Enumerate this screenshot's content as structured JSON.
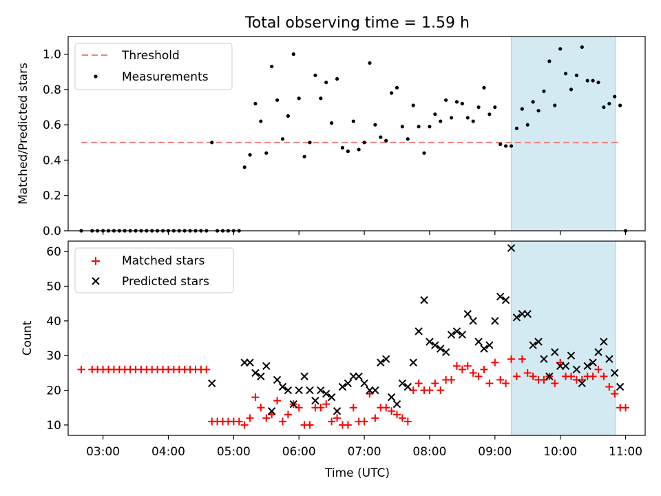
{
  "chart_data": [
    {
      "type": "scatter",
      "title": "Total observing time = 1.59 h",
      "xlabel": "",
      "ylabel": "Matched/Predicted stars",
      "ylim": [
        0,
        1.1
      ],
      "yticks": [
        0.0,
        0.2,
        0.4,
        0.6,
        0.8,
        1.0
      ],
      "ytick_labels": [
        "0.0",
        "0.2",
        "0.4",
        "0.6",
        "0.8",
        "1.0"
      ],
      "xlim": [
        "02:28",
        "11:18"
      ],
      "shaded_span": [
        "09:15",
        "10:51"
      ],
      "shaded_color": "#d4eaf2",
      "threshold": 0.5,
      "legend": {
        "placement": "upper-left",
        "threshold_label": "Threshold",
        "measurements_label": "Measurements"
      },
      "series": [
        {
          "name": "Threshold",
          "style": "dashed-line",
          "color": "#f08080",
          "x": [
            "02:40",
            "10:55"
          ],
          "y": [
            0.5,
            0.5
          ]
        },
        {
          "name": "Measurements",
          "style": "dot",
          "color": "#000000",
          "x": [
            "02:40",
            "02:50",
            "02:55",
            "03:00",
            "03:05",
            "03:10",
            "03:15",
            "03:20",
            "03:25",
            "03:30",
            "03:35",
            "03:40",
            "03:45",
            "03:50",
            "03:55",
            "04:00",
            "04:05",
            "04:10",
            "04:15",
            "04:20",
            "04:25",
            "04:30",
            "04:35",
            "04:40",
            "04:45",
            "04:50",
            "04:55",
            "05:00",
            "05:05",
            "05:10",
            "05:15",
            "05:20",
            "05:25",
            "05:30",
            "05:35",
            "05:40",
            "05:45",
            "05:50",
            "05:55",
            "06:00",
            "06:05",
            "06:10",
            "06:15",
            "06:20",
            "06:25",
            "06:30",
            "06:35",
            "06:40",
            "06:45",
            "06:50",
            "06:55",
            "07:00",
            "07:05",
            "07:10",
            "07:15",
            "07:20",
            "07:25",
            "07:30",
            "07:35",
            "07:40",
            "07:45",
            "07:50",
            "07:55",
            "08:00",
            "08:05",
            "08:10",
            "08:15",
            "08:20",
            "08:25",
            "08:30",
            "08:35",
            "08:40",
            "08:45",
            "08:50",
            "08:55",
            "09:00",
            "09:05",
            "09:10",
            "09:15",
            "09:20",
            "09:25",
            "09:30",
            "09:35",
            "09:40",
            "09:45",
            "09:50",
            "09:55",
            "10:00",
            "10:05",
            "10:10",
            "10:15",
            "10:20",
            "10:25",
            "10:30",
            "10:35",
            "10:40",
            "10:45",
            "10:50",
            "10:55",
            "11:00"
          ],
          "y": [
            0.0,
            0.0,
            0.0,
            0.0,
            0.0,
            0.0,
            0.0,
            0.0,
            0.0,
            0.0,
            0.0,
            0.0,
            0.0,
            0.0,
            0.0,
            0.0,
            0.0,
            0.0,
            0.0,
            0.0,
            0.0,
            0.0,
            0.0,
            0.5,
            0.0,
            0.0,
            0.0,
            0.0,
            0.0,
            0.36,
            0.43,
            0.72,
            0.62,
            0.44,
            0.93,
            0.74,
            0.52,
            0.65,
            1.0,
            0.75,
            0.42,
            0.5,
            0.88,
            0.75,
            0.84,
            0.61,
            0.86,
            0.47,
            0.45,
            0.62,
            0.46,
            0.5,
            0.95,
            0.6,
            0.53,
            0.51,
            0.78,
            0.81,
            0.59,
            0.52,
            0.71,
            0.59,
            0.44,
            0.59,
            0.66,
            0.62,
            0.74,
            0.64,
            0.73,
            0.72,
            0.64,
            0.62,
            0.7,
            0.81,
            0.66,
            0.7,
            0.49,
            0.48,
            0.48,
            0.58,
            0.69,
            0.6,
            0.73,
            0.68,
            0.79,
            0.96,
            0.71,
            1.03,
            0.89,
            0.8,
            0.88,
            1.04,
            0.85,
            0.85,
            0.84,
            0.7,
            0.72,
            0.76,
            0.71,
            0.0
          ]
        }
      ]
    },
    {
      "type": "scatter",
      "title": "",
      "xlabel": "Time (UTC)",
      "ylabel": "Count",
      "ylim": [
        7,
        63
      ],
      "yticks": [
        10,
        20,
        30,
        40,
        50,
        60
      ],
      "xticks": [
        "03:00",
        "04:00",
        "05:00",
        "06:00",
        "07:00",
        "08:00",
        "09:00",
        "10:00",
        "11:00"
      ],
      "shaded_span": [
        "09:15",
        "10:51"
      ],
      "shaded_color": "#d4eaf2",
      "legend": {
        "placement": "upper-left",
        "matched_label": "Matched stars",
        "predicted_label": "Predicted stars"
      },
      "series": [
        {
          "name": "Matched stars",
          "marker": "plus",
          "color": "#ff0000",
          "x": [
            "02:40",
            "02:50",
            "02:55",
            "03:00",
            "03:05",
            "03:10",
            "03:15",
            "03:20",
            "03:25",
            "03:30",
            "03:35",
            "03:40",
            "03:45",
            "03:50",
            "03:55",
            "04:00",
            "04:05",
            "04:10",
            "04:15",
            "04:20",
            "04:25",
            "04:30",
            "04:35",
            "04:40",
            "04:45",
            "04:50",
            "04:55",
            "05:00",
            "05:05",
            "05:10",
            "05:15",
            "05:20",
            "05:25",
            "05:30",
            "05:35",
            "05:40",
            "05:45",
            "05:50",
            "05:55",
            "06:00",
            "06:05",
            "06:10",
            "06:15",
            "06:20",
            "06:25",
            "06:30",
            "06:35",
            "06:40",
            "06:45",
            "06:50",
            "06:55",
            "07:00",
            "07:05",
            "07:10",
            "07:15",
            "07:20",
            "07:25",
            "07:30",
            "07:35",
            "07:40",
            "07:45",
            "07:50",
            "07:55",
            "08:00",
            "08:05",
            "08:10",
            "08:15",
            "08:20",
            "08:25",
            "08:30",
            "08:35",
            "08:40",
            "08:45",
            "08:50",
            "08:55",
            "09:00",
            "09:05",
            "09:10",
            "09:15",
            "09:20",
            "09:25",
            "09:30",
            "09:35",
            "09:40",
            "09:45",
            "09:50",
            "09:55",
            "10:00",
            "10:05",
            "10:10",
            "10:15",
            "10:20",
            "10:25",
            "10:30",
            "10:35",
            "10:40",
            "10:45",
            "10:50",
            "10:55",
            "11:00"
          ],
          "y": [
            26,
            26,
            26,
            26,
            26,
            26,
            26,
            26,
            26,
            26,
            26,
            26,
            26,
            26,
            26,
            26,
            26,
            26,
            26,
            26,
            26,
            26,
            26,
            11,
            11,
            11,
            11,
            11,
            11,
            10,
            12,
            18,
            15,
            12,
            13,
            17,
            11,
            13,
            16,
            15,
            10,
            10,
            15,
            15,
            16,
            11,
            12,
            10,
            10,
            15,
            11,
            11,
            19,
            12,
            15,
            15,
            14,
            13,
            12,
            11,
            20,
            22,
            20,
            20,
            22,
            20,
            23,
            23,
            27,
            26,
            27,
            25,
            24,
            26,
            22,
            28,
            23,
            22,
            29,
            24,
            29,
            25,
            24,
            23,
            23,
            24,
            22,
            28,
            24,
            24,
            23,
            23,
            24,
            24,
            26,
            24,
            21,
            19,
            15,
            15
          ]
        },
        {
          "name": "Predicted stars",
          "marker": "x",
          "color": "#000000",
          "x": [
            "04:40",
            "05:10",
            "05:15",
            "05:20",
            "05:25",
            "05:30",
            "05:35",
            "05:40",
            "05:45",
            "05:50",
            "05:55",
            "06:00",
            "06:05",
            "06:10",
            "06:15",
            "06:20",
            "06:25",
            "06:30",
            "06:35",
            "06:40",
            "06:45",
            "06:50",
            "06:55",
            "07:00",
            "07:05",
            "07:10",
            "07:15",
            "07:20",
            "07:25",
            "07:30",
            "07:35",
            "07:40",
            "07:45",
            "07:50",
            "07:55",
            "08:00",
            "08:05",
            "08:10",
            "08:15",
            "08:20",
            "08:25",
            "08:30",
            "08:35",
            "08:40",
            "08:45",
            "08:50",
            "08:55",
            "09:00",
            "09:05",
            "09:10",
            "09:15",
            "09:20",
            "09:25",
            "09:30",
            "09:35",
            "09:40",
            "09:45",
            "09:50",
            "09:55",
            "10:00",
            "10:05",
            "10:10",
            "10:15",
            "10:20",
            "10:25",
            "10:30",
            "10:35",
            "10:40",
            "10:45",
            "10:50",
            "10:55"
          ],
          "y": [
            22,
            28,
            28,
            25,
            24,
            27,
            14,
            23,
            21,
            20,
            16,
            20,
            24,
            20,
            17,
            20,
            19,
            18,
            14,
            21,
            22,
            24,
            24,
            22,
            20,
            20,
            28,
            29,
            18,
            16,
            22,
            21,
            28,
            37,
            46,
            34,
            33,
            32,
            31,
            36,
            37,
            36,
            42,
            40,
            34,
            32,
            33,
            40,
            47,
            46,
            61,
            41,
            42,
            42,
            33,
            34,
            29,
            24,
            31,
            27,
            27,
            30,
            26,
            22,
            27,
            28,
            31,
            34,
            29,
            25,
            21
          ]
        }
      ]
    }
  ]
}
